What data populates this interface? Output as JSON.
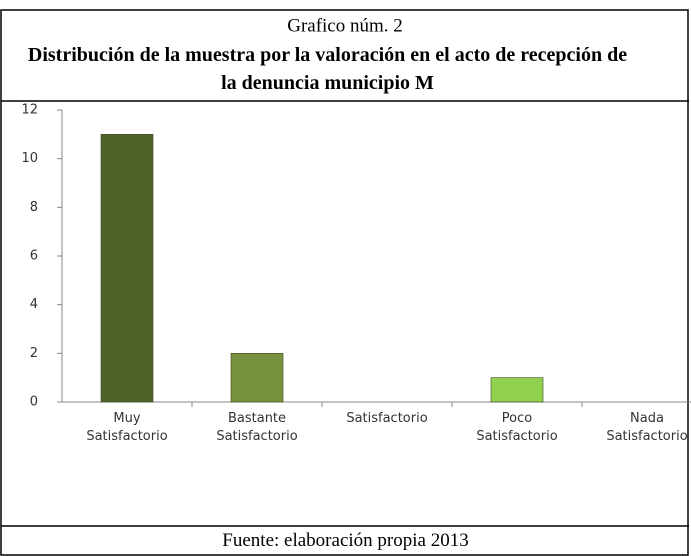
{
  "chart_data": {
    "type": "bar",
    "title": "Grafico núm. 2",
    "subtitle": "Distribución de la muestra por la valoración en el acto de recepción de la denuncia municipio M",
    "source": "Fuente: elaboración propia 2013",
    "categories": [
      "Muy Satisfactorio",
      "Bastante Satisfactorio",
      "Satisfactorio",
      "Poco Satisfactorio",
      "Nada Satisfactorio"
    ],
    "values": [
      11,
      2,
      0,
      1,
      0
    ],
    "colors": [
      "#4f6228",
      "#76923c",
      "#8db63c",
      "#92d050",
      "#92d050"
    ],
    "ylim": [
      0,
      12
    ],
    "yticks": [
      0,
      2,
      4,
      6,
      8,
      10,
      12
    ],
    "grid": false
  }
}
